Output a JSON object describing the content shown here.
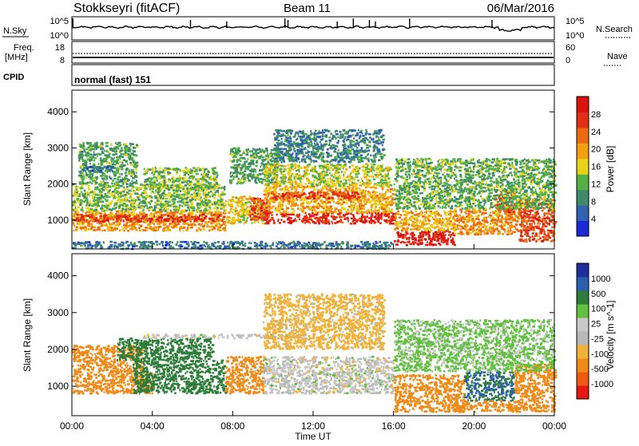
{
  "header": {
    "station": "Stokkseyri (fitACF)",
    "beam": "Beam 11",
    "date": "06/Mar/2016"
  },
  "sky_panel": {
    "left_label": "N.Sky",
    "left_tick_top": "10^5",
    "left_tick_bottom": "10^0",
    "right_tick_top": "10^5",
    "right_tick_bottom": "10^0",
    "right_label": "N.Search"
  },
  "freq_panel": {
    "left_label_1": "Freq.",
    "left_label_2": "[MHz]",
    "left_tick_top": "18",
    "left_tick_bottom": "8",
    "right_tick_top": "60",
    "right_tick_bottom": "0",
    "right_label": "Nave"
  },
  "cpid_panel": {
    "label": "CPID",
    "value": "normal (fast) 151"
  },
  "colors": {
    "power": [
      "#1a2bd6",
      "#2f62b0",
      "#3f8a6a",
      "#55b045",
      "#e8d21a",
      "#f2a010",
      "#ee6a10",
      "#e03015",
      "#d8140f"
    ],
    "velocity": [
      "#e41a10",
      "#ee5a12",
      "#f08a18",
      "#f2b23a",
      "#b8b8b8",
      "#c8c8c8",
      "#62c040",
      "#2f7d3a",
      "#2a5fae",
      "#1f2f9a"
    ],
    "ground_scatter": "#c8c6bf"
  },
  "chart_data": [
    {
      "type": "heatmap",
      "name": "Power",
      "xlabel": "",
      "ylabel": "Slant Range [km]",
      "x_unit": "hours UT",
      "xlim": [
        0,
        24
      ],
      "ylim": [
        200,
        4600
      ],
      "yticks": [
        1000,
        2000,
        3000,
        4000
      ],
      "colorbar": {
        "label": "Power [dB]",
        "range": [
          0,
          32
        ],
        "ticks": [
          4,
          8,
          12,
          16,
          20,
          24,
          28
        ]
      },
      "cells": [
        {
          "t0": 0.0,
          "t1": 7.6,
          "r0": 700,
          "r1": 1250,
          "value": 20
        },
        {
          "t0": 0.0,
          "t1": 7.6,
          "r0": 950,
          "r1": 1150,
          "value": 27
        },
        {
          "t0": 0.0,
          "t1": 7.6,
          "r0": 1250,
          "r1": 2000,
          "value": 13
        },
        {
          "t0": 0.3,
          "t1": 3.2,
          "r0": 2000,
          "r1": 3150,
          "value": 11
        },
        {
          "t0": 0.5,
          "t1": 2.0,
          "r0": 2350,
          "r1": 2500,
          "value": 6
        },
        {
          "t0": 3.5,
          "t1": 7.2,
          "r0": 1850,
          "r1": 2450,
          "value": 13
        },
        {
          "t0": 7.6,
          "t1": 9.5,
          "r0": 900,
          "r1": 1650,
          "value": 17
        },
        {
          "t0": 8.8,
          "t1": 9.8,
          "r0": 1000,
          "r1": 1600,
          "value": 27
        },
        {
          "t0": 7.8,
          "t1": 10.2,
          "r0": 2000,
          "r1": 3000,
          "value": 11
        },
        {
          "t0": 9.5,
          "t1": 16.0,
          "r0": 900,
          "r1": 1200,
          "value": 28
        },
        {
          "t0": 9.5,
          "t1": 16.0,
          "r0": 1200,
          "r1": 1950,
          "value": 19
        },
        {
          "t0": 9.8,
          "t1": 14.2,
          "r0": 1580,
          "r1": 1780,
          "value": 27
        },
        {
          "t0": 9.5,
          "t1": 15.8,
          "r0": 1950,
          "r1": 2550,
          "value": 15
        },
        {
          "t0": 10.0,
          "t1": 15.5,
          "r0": 2600,
          "r1": 3500,
          "value": 8
        },
        {
          "t0": 16.0,
          "t1": 19.0,
          "r0": 300,
          "r1": 700,
          "value": 29
        },
        {
          "t0": 16.0,
          "t1": 19.0,
          "r0": 700,
          "r1": 1250,
          "value": 19
        },
        {
          "t0": 19.0,
          "t1": 22.2,
          "r0": 600,
          "r1": 1300,
          "value": 21
        },
        {
          "t0": 21.0,
          "t1": 22.0,
          "r0": 1200,
          "r1": 1800,
          "value": 25
        },
        {
          "t0": 22.2,
          "t1": 24.0,
          "r0": 400,
          "r1": 1600,
          "value": 25
        },
        {
          "t0": 16.0,
          "t1": 24.0,
          "r0": 1300,
          "r1": 2700,
          "value": 12
        },
        {
          "t0": 0.0,
          "t1": 16.0,
          "r0": 200,
          "r1": 400,
          "value": 7
        }
      ]
    },
    {
      "type": "heatmap",
      "name": "Velocity",
      "xlabel": "Time UT",
      "ylabel": "Slant Range [km]",
      "x_unit": "hours UT",
      "xlim": [
        0,
        24
      ],
      "xticks": [
        "00:00",
        "04:00",
        "08:00",
        "12:00",
        "16:00",
        "20:00",
        "00:00"
      ],
      "ylim": [
        200,
        4600
      ],
      "yticks": [
        1000,
        2000,
        3000,
        4000
      ],
      "colorbar": {
        "label": "Velocity [m s^-1]",
        "ticks": [
          1000,
          500,
          100,
          25,
          -25,
          -100,
          -500,
          -1000
        ]
      },
      "cells": [
        {
          "t0": 0.0,
          "t1": 4.0,
          "r0": 800,
          "r1": 1400,
          "value": -300
        },
        {
          "t0": 0.0,
          "t1": 3.5,
          "r0": 1400,
          "r1": 2100,
          "value": -200
        },
        {
          "t0": 3.0,
          "t1": 7.6,
          "r0": 800,
          "r1": 1700,
          "value": 150
        },
        {
          "t0": 2.2,
          "t1": 7.0,
          "r0": 1700,
          "r1": 2300,
          "value": 200
        },
        {
          "t0": 7.6,
          "t1": 9.5,
          "r0": 800,
          "r1": 1800,
          "value": -150
        },
        {
          "t0": 9.5,
          "t1": 16.0,
          "r0": 800,
          "r1": 1800,
          "value": 0
        },
        {
          "t0": 3.5,
          "t1": 11.5,
          "r0": 2300,
          "r1": 2400,
          "value": 0
        },
        {
          "t0": 9.5,
          "t1": 15.5,
          "r0": 2000,
          "r1": 3500,
          "value": -50
        },
        {
          "t0": 16.0,
          "t1": 19.5,
          "r0": 300,
          "r1": 900,
          "value": -400
        },
        {
          "t0": 16.0,
          "t1": 19.5,
          "r0": 900,
          "r1": 1300,
          "value": -150
        },
        {
          "t0": 19.5,
          "t1": 22.0,
          "r0": 600,
          "r1": 1400,
          "value": 500
        },
        {
          "t0": 19.0,
          "t1": 22.2,
          "r0": 300,
          "r1": 600,
          "value": -300
        },
        {
          "t0": 22.0,
          "t1": 24.0,
          "r0": 300,
          "r1": 1600,
          "value": -250
        },
        {
          "t0": 16.0,
          "t1": 24.0,
          "r0": 1400,
          "r1": 2800,
          "value": 40
        }
      ]
    }
  ]
}
